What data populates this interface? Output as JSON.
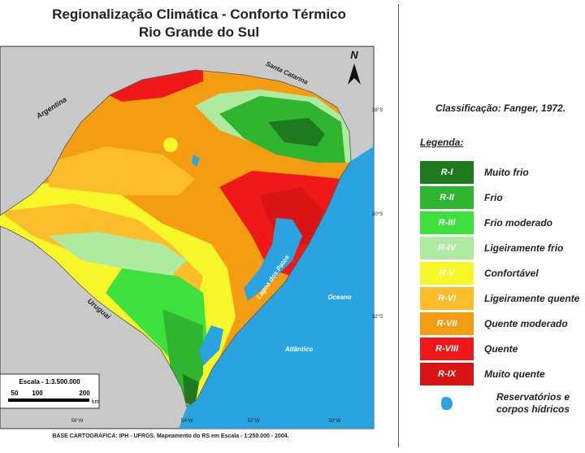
{
  "header": {
    "title_line1": "Regionalização Climática - Conforto Térmico",
    "title_line2": "Rio Grande do Sul"
  },
  "map": {
    "labels": [
      "Argentina",
      "Santa Catarina",
      "Uruguai",
      "Lagoa dos Patos",
      "Oceano",
      "Atlântico",
      "N"
    ],
    "lat_labels": [
      "28°S",
      "30°S",
      "32°S"
    ],
    "lon_labels": [
      "56°W",
      "54°W",
      "52°W",
      "50°W"
    ],
    "scale_title": "Escala - 1:3.500.000",
    "scale_ticks": [
      "50",
      "100",
      "200"
    ],
    "scale_unit": "km",
    "credit": "BASE CARTOGRÁFICA: IPH - UFRGS. Mapeamento do RS em Escala - 1:250.000 - 2004."
  },
  "panel": {
    "classification": "Classificação: Fanger, 1972.",
    "legend_title": "Legenda:",
    "items": [
      {
        "code": "R-I",
        "label": "Muito frio",
        "color": "#1e7a1e"
      },
      {
        "code": "R-II",
        "label": "Frio",
        "color": "#2fb52f"
      },
      {
        "code": "R-III",
        "label": "Frio moderado",
        "color": "#3ee03e"
      },
      {
        "code": "R-IV",
        "label": "Ligeiramente frio",
        "color": "#aeeaa0"
      },
      {
        "code": "R-V",
        "label": "Confortável",
        "color": "#f7f72a"
      },
      {
        "code": "R-VI",
        "label": "Ligeiramente quente",
        "color": "#fbbd2a"
      },
      {
        "code": "R-VII",
        "label": "Quente moderado",
        "color": "#f59d12"
      },
      {
        "code": "R-VIII",
        "label": "Quente",
        "color": "#f01818"
      },
      {
        "code": "R-IX",
        "label": "Muito quente",
        "color": "#d81414"
      }
    ],
    "water_label": "Reservatórios e corpos hídricos",
    "water_color": "#2aa4e0"
  }
}
